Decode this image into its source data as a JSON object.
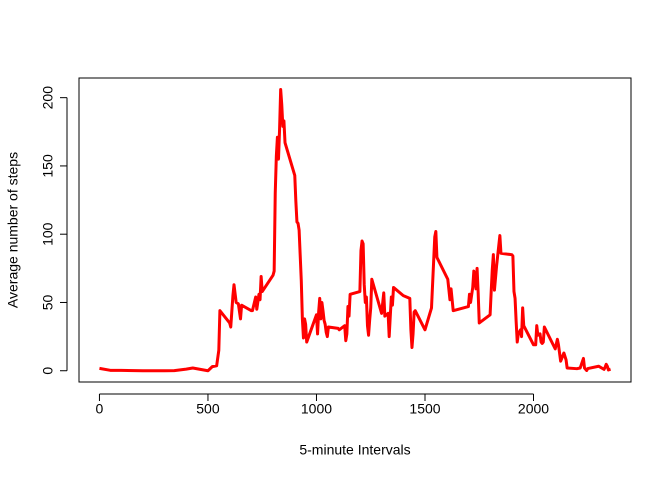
{
  "chart_data": {
    "type": "line",
    "xlabel": "5-minute Intervals",
    "ylabel": "Average number of steps",
    "color": "#ff0000",
    "x": [
      0,
      50,
      100,
      200,
      300,
      345,
      400,
      430,
      500,
      520,
      540,
      550,
      555,
      600,
      605,
      615,
      620,
      630,
      640,
      650,
      655,
      700,
      705,
      720,
      725,
      735,
      740,
      745,
      750,
      800,
      805,
      810,
      815,
      820,
      825,
      830,
      835,
      840,
      845,
      850,
      855,
      900,
      905,
      910,
      915,
      920,
      930,
      935,
      940,
      945,
      950,
      955,
      1000,
      1005,
      1010,
      1015,
      1020,
      1025,
      1030,
      1035,
      1040,
      1045,
      1050,
      1055,
      1100,
      1105,
      1130,
      1135,
      1140,
      1145,
      1150,
      1155,
      1200,
      1205,
      1210,
      1215,
      1220,
      1225,
      1230,
      1235,
      1240,
      1245,
      1250,
      1255,
      1300,
      1310,
      1315,
      1330,
      1335,
      1340,
      1345,
      1350,
      1355,
      1400,
      1430,
      1435,
      1440,
      1445,
      1450,
      1455,
      1500,
      1530,
      1545,
      1550,
      1555,
      1605,
      1615,
      1620,
      1630,
      1700,
      1705,
      1710,
      1720,
      1725,
      1730,
      1735,
      1740,
      1745,
      1750,
      1800,
      1805,
      1810,
      1815,
      1820,
      1830,
      1845,
      1850,
      1900,
      1905,
      1910,
      1915,
      1920,
      1925,
      1930,
      1940,
      1945,
      1950,
      1955,
      2000,
      2005,
      2010,
      2015,
      2020,
      2030,
      2035,
      2040,
      2045,
      2050,
      2100,
      2110,
      2115,
      2125,
      2140,
      2150,
      2155,
      2200,
      2215,
      2230,
      2235,
      2245,
      2250,
      2300,
      2325,
      2330,
      2335,
      2340,
      2345,
      2355
    ],
    "values": [
      1.7,
      0.3,
      0.3,
      0,
      0,
      0.1,
      1.2,
      2,
      0,
      3,
      3.6,
      15,
      44,
      35,
      32,
      55,
      63,
      50,
      49,
      38,
      48,
      44,
      44,
      54,
      45,
      56,
      52,
      69,
      58,
      70,
      73,
      130,
      157,
      171,
      155,
      177,
      206,
      195,
      179,
      183,
      167,
      143,
      124,
      109,
      108,
      103,
      66,
      38,
      24,
      38,
      34,
      21,
      41,
      27,
      43,
      53,
      38,
      50,
      44,
      37,
      34,
      28,
      25,
      32,
      31,
      30,
      33,
      22,
      27,
      47,
      40,
      56,
      58,
      88,
      95,
      93,
      63,
      50,
      54,
      33,
      26,
      37,
      46,
      67,
      42,
      57,
      40,
      42,
      25,
      40,
      54,
      48,
      61,
      55,
      53,
      30,
      17,
      27,
      43,
      44,
      30,
      46,
      98,
      102,
      83,
      67,
      52,
      60,
      44,
      47,
      56,
      50,
      61,
      73,
      68,
      60,
      75,
      57,
      35,
      41,
      58,
      74,
      85,
      59,
      77,
      99,
      86,
      85,
      84,
      58,
      53,
      36,
      21,
      27,
      30,
      25,
      46,
      33,
      19,
      19,
      19,
      33,
      26,
      27,
      21,
      20,
      21,
      32,
      16,
      23,
      19,
      7,
      13,
      8,
      2,
      1.5,
      2,
      9,
      2,
      0.2,
      1.6,
      3.3,
      1,
      2.6,
      4.7,
      3.3,
      0.6,
      1.1
    ],
    "xlim": [
      -94.2,
      2449.2
    ],
    "ylim": [
      -8.25,
      214.4
    ],
    "xticks": [
      0,
      500,
      1000,
      1500,
      2000
    ],
    "yticks": [
      0,
      50,
      100,
      150,
      200
    ]
  }
}
